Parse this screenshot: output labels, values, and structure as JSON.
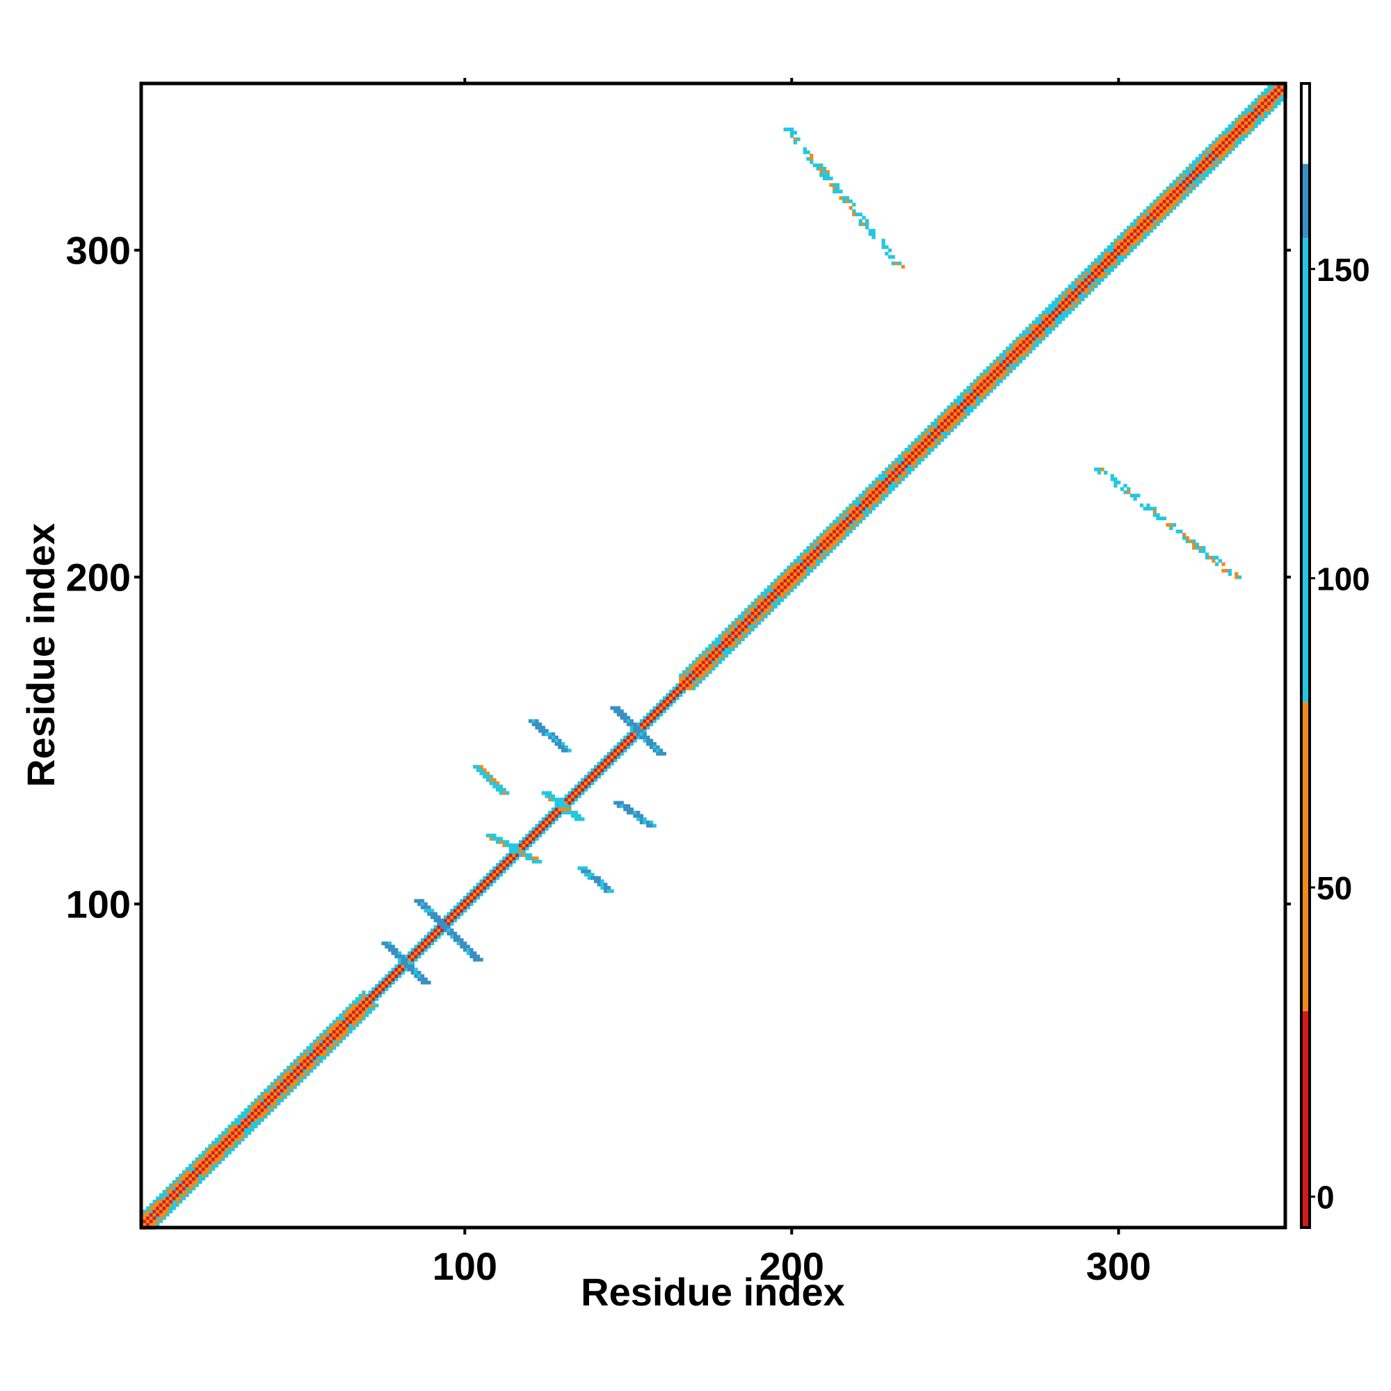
{
  "chart_data": {
    "type": "heatmap",
    "title": "",
    "xlabel": "Residue index",
    "ylabel": "Residue index",
    "xlim": [
      1,
      351
    ],
    "ylim": [
      1,
      351
    ],
    "xticks": [
      100,
      200,
      300
    ],
    "yticks": [
      100,
      200,
      300
    ],
    "colorbar": {
      "range": [
        -5,
        180
      ],
      "ticks": [
        0,
        50,
        100,
        150
      ],
      "bands": [
        {
          "from": -5,
          "to": 30,
          "color": "#d7191c"
        },
        {
          "from": 30,
          "to": 80,
          "color": "#f08a1c"
        },
        {
          "from": 80,
          "to": 155,
          "color": "#22c8e0"
        },
        {
          "from": 155,
          "to": 167,
          "color": "#3a8fc4"
        },
        {
          "from": 167,
          "to": 180,
          "color": "#ffffff"
        }
      ]
    },
    "features": [
      {
        "kind": "diagonal-band",
        "from": 1,
        "to": 351,
        "value": 55
      },
      {
        "kind": "antidiagonal-strand",
        "x": [
          76,
          88
        ],
        "y": [
          88,
          76
        ],
        "value": 160
      },
      {
        "kind": "antidiagonal-strand",
        "x": [
          86,
          104
        ],
        "y": [
          101,
          83
        ],
        "value": 160
      },
      {
        "kind": "antidiagonal-strand",
        "x": [
          146,
          160
        ],
        "y": [
          160,
          146
        ],
        "value": 160
      },
      {
        "kind": "antidiagonal-strand",
        "x": [
          125,
          135
        ],
        "y": [
          134,
          126
        ],
        "value": 110
      },
      {
        "kind": "contact-patch",
        "x": [
          121,
          131
        ],
        "y": [
          156,
          147
        ],
        "value": 160
      },
      {
        "kind": "contact-patch",
        "x": [
          147,
          157
        ],
        "y": [
          131,
          124
        ],
        "value": 160
      },
      {
        "kind": "contact-patch",
        "x": [
          104,
          112
        ],
        "y": [
          142,
          134
        ],
        "value": 110
      },
      {
        "kind": "contact-patch",
        "x": [
          136,
          144
        ],
        "y": [
          111,
          104
        ],
        "value": 160
      },
      {
        "kind": "contact-patch",
        "x": [
          108,
          122
        ],
        "y": [
          121,
          113
        ],
        "value": 110
      },
      {
        "kind": "offdiag-strand",
        "x": [
          199,
          233
        ],
        "y": [
          337,
          295
        ],
        "value": 110
      },
      {
        "kind": "offdiag-strand",
        "x": [
          293,
          336
        ],
        "y": [
          234,
          200
        ],
        "value": 110
      }
    ]
  }
}
